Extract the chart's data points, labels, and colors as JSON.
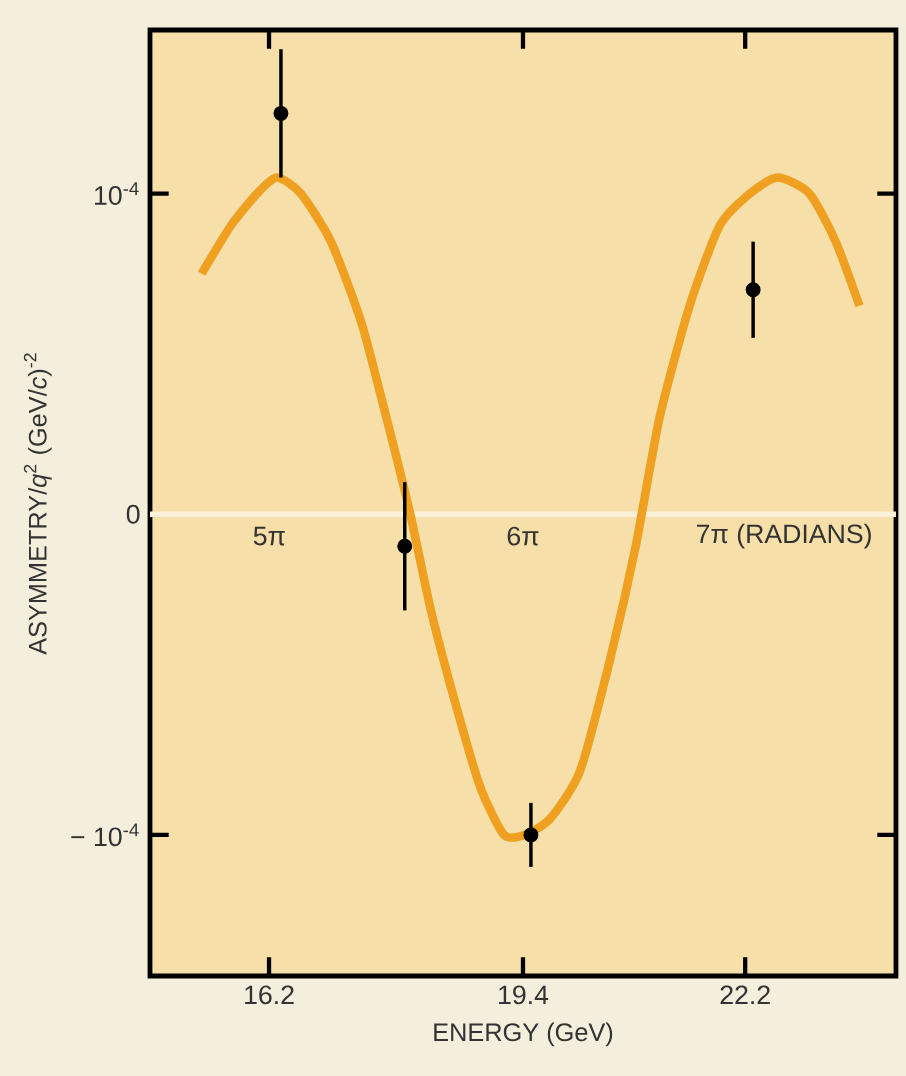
{
  "chart_data": {
    "type": "scatter",
    "xlabel": "ENERGY (GeV)",
    "ylabel": "ASYMMETRY/*q*$^{2}$ (GeV/*c*)$^{-2}$",
    "xlim": [
      14.7,
      24.1
    ],
    "ylim": [
      -0.000144,
      0.000151
    ],
    "xticks": [
      16.2,
      19.4,
      22.2
    ],
    "yticks": [
      {
        "value": -0.0001,
        "label": "− 10$^{-4}$"
      },
      0,
      {
        "value": 0.0001,
        "label": "10$^{-4}$"
      }
    ],
    "grid": false,
    "series": [
      {
        "type": "line",
        "color": "#f0a020",
        "marker": "none",
        "line_style": "solid",
        "x": [
          15.35,
          15.72,
          16.05,
          16.3,
          16.6,
          16.98,
          17.36,
          17.68,
          17.98,
          18.24,
          18.56,
          18.86,
          19.16,
          19.42,
          19.74,
          20.12,
          20.5,
          20.82,
          21.12,
          21.5,
          21.88,
          22.26,
          22.61,
          23.01,
          23.34,
          23.64
        ],
        "values": [
          7.5e-05,
          9e-05,
          0.0001,
          0.000105,
          0.0001,
          8.5e-05,
          6e-05,
          3e-05,
          0.0,
          -3e-05,
          -6e-05,
          -8.5e-05,
          -0.0001,
          -0.0001,
          -9.5e-05,
          -8e-05,
          -4.5e-05,
          -1e-05,
          3e-05,
          6.5e-05,
          9e-05,
          0.0001,
          0.000105,
          0.0001,
          8.5e-05,
          6.5e-05
        ]
      },
      {
        "color": "#000000",
        "marker": "circle",
        "x": [
          16.35,
          17.91,
          19.5,
          22.3
        ],
        "values": [
          0.000125,
          -1e-05,
          -0.0001,
          7e-05
        ],
        "errors": [
          2e-05,
          2e-05,
          1e-05,
          1.5e-05
        ]
      }
    ],
    "ref_lines": [
      {
        "axis": "y",
        "value": 0,
        "color": "#fbf0d8"
      }
    ],
    "annotations": [
      "5π",
      "6π",
      "7π (RADIANS)"
    ]
  }
}
